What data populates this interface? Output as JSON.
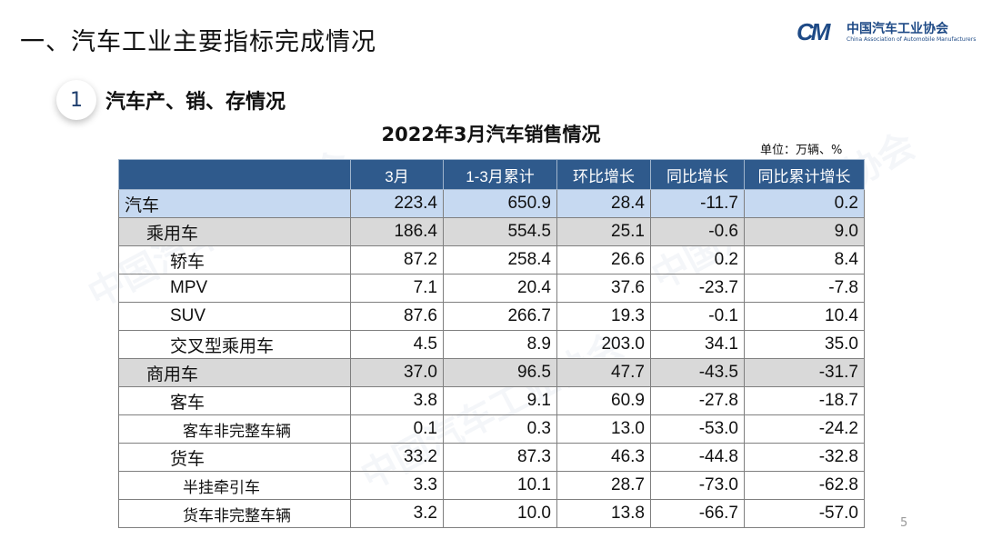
{
  "title": "一、汽车工业主要指标完成情况",
  "logo": {
    "mark": "CM",
    "cn": "中国汽车工业协会",
    "en": "China Association of Automobile Manufacturers"
  },
  "section": {
    "number": "1",
    "label": "汽车产、销、存情况"
  },
  "table_title": "2022年3月汽车销售情况",
  "unit": "单位：万辆、%",
  "columns": [
    "",
    "3月",
    "1-3月累计",
    "环比增长",
    "同比增长",
    "同比累计增长"
  ],
  "rows": [
    {
      "name": "汽车",
      "level": 0,
      "values": [
        "223.4",
        "650.9",
        "28.4",
        "-11.7",
        "0.2"
      ]
    },
    {
      "name": "乘用车",
      "level": 1,
      "values": [
        "186.4",
        "554.5",
        "25.1",
        "-0.6",
        "9.0"
      ]
    },
    {
      "name": "轿车",
      "level": 2,
      "values": [
        "87.2",
        "258.4",
        "26.6",
        "0.2",
        "8.4"
      ]
    },
    {
      "name": "MPV",
      "level": 2,
      "values": [
        "7.1",
        "20.4",
        "37.6",
        "-23.7",
        "-7.8"
      ]
    },
    {
      "name": "SUV",
      "level": 2,
      "values": [
        "87.6",
        "266.7",
        "19.3",
        "-0.1",
        "10.4"
      ]
    },
    {
      "name": "交叉型乘用车",
      "level": 2,
      "values": [
        "4.5",
        "8.9",
        "203.0",
        "34.1",
        "35.0"
      ]
    },
    {
      "name": "商用车",
      "level": 1,
      "values": [
        "37.0",
        "96.5",
        "47.7",
        "-43.5",
        "-31.7"
      ]
    },
    {
      "name": "客车",
      "level": 2,
      "values": [
        "3.8",
        "9.1",
        "60.9",
        "-27.8",
        "-18.7"
      ]
    },
    {
      "name": "客车非完整车辆",
      "level": 3,
      "values": [
        "0.1",
        "0.3",
        "13.0",
        "-53.0",
        "-24.2"
      ]
    },
    {
      "name": "货车",
      "level": 2,
      "values": [
        "33.2",
        "87.3",
        "46.3",
        "-44.8",
        "-32.8"
      ]
    },
    {
      "name": "半挂牵引车",
      "level": 3,
      "values": [
        "3.3",
        "10.1",
        "28.7",
        "-73.0",
        "-62.8"
      ]
    },
    {
      "name": "货车非完整车辆",
      "level": 3,
      "values": [
        "3.2",
        "10.0",
        "13.8",
        "-66.7",
        "-57.0"
      ]
    }
  ],
  "page_number": "5",
  "colors": {
    "header": "#2f5a8c",
    "total_row": "#c6d9f1",
    "category_row": "#d9d9d9",
    "brand": "#1e4a86"
  }
}
